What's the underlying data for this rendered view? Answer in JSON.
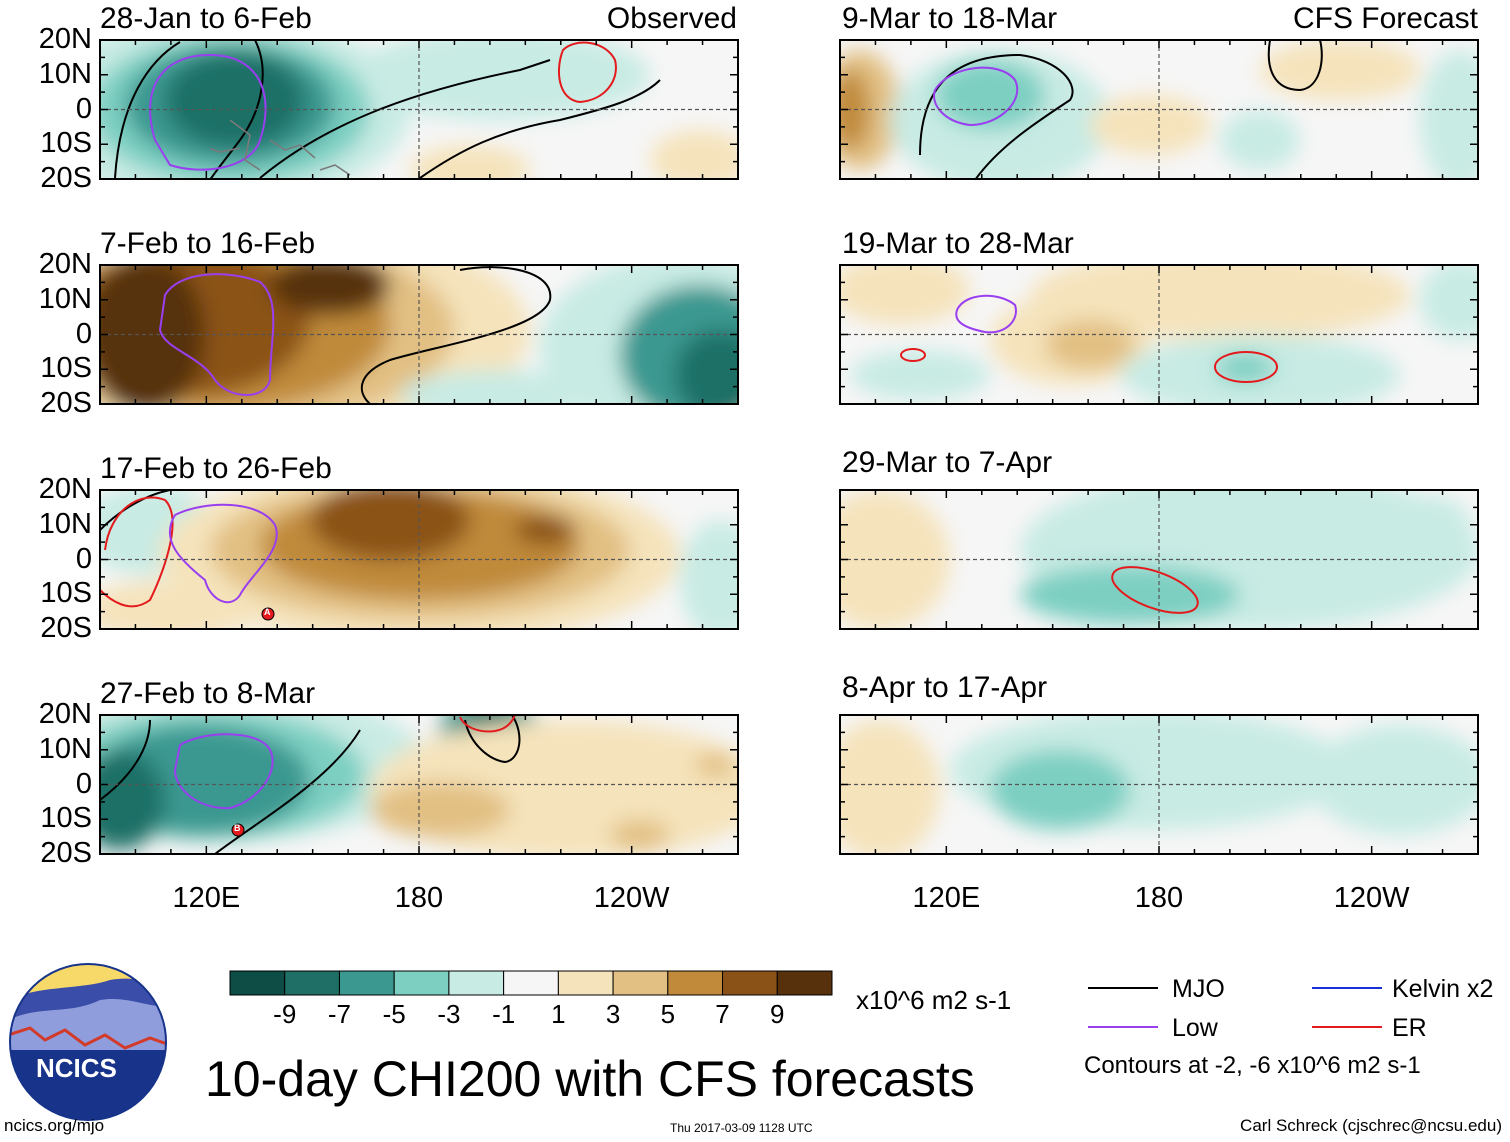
{
  "chart_data": {
    "type": "heatmap",
    "title": "10-day CHI200 with CFS forecasts",
    "variable": "CHI200",
    "units": "x10^6 m2 s-1",
    "y_ticks": [
      "20N",
      "10N",
      "0",
      "10S",
      "20S"
    ],
    "x_ticks": [
      "120E",
      "180",
      "120W"
    ],
    "ylim": [
      -20,
      20
    ],
    "colorbar": {
      "labels": [
        "-9",
        "-7",
        "-5",
        "-3",
        "-1",
        "1",
        "3",
        "5",
        "7",
        "9"
      ],
      "colors": [
        "#0d4d45",
        "#1f6f66",
        "#3a9890",
        "#7dcfc2",
        "#c8ebe4",
        "#f6f6f6",
        "#f5e3bb",
        "#e2c083",
        "#c08a3a",
        "#8b5217",
        "#56310c"
      ]
    },
    "panels": [
      {
        "label": "28-Jan to 6-Feb",
        "type_label": "Observed",
        "source": "observed"
      },
      {
        "label": "7-Feb to 16-Feb",
        "type_label": "",
        "source": "observed"
      },
      {
        "label": "17-Feb to 26-Feb",
        "type_label": "",
        "source": "observed",
        "markers": [
          "A"
        ]
      },
      {
        "label": "27-Feb to 8-Mar",
        "type_label": "",
        "source": "observed",
        "markers": [
          "B"
        ]
      },
      {
        "label": "9-Mar to 18-Mar",
        "type_label": "CFS Forecast",
        "source": "forecast"
      },
      {
        "label": "19-Mar to 28-Mar",
        "type_label": "",
        "source": "forecast"
      },
      {
        "label": "29-Mar to 7-Apr",
        "type_label": "",
        "source": "forecast"
      },
      {
        "label": "8-Apr to 17-Apr",
        "type_label": "",
        "source": "forecast"
      }
    ],
    "legend": {
      "items": [
        {
          "name": "MJO",
          "color": "#000000"
        },
        {
          "name": "Kelvin x2",
          "color": "#1a2fd6"
        },
        {
          "name": "Low",
          "color": "#9a3ff0"
        },
        {
          "name": "ER",
          "color": "#e41a1c"
        }
      ],
      "contours_note": "Contours at -2, -6 x10^6 m2 s-1"
    }
  },
  "logo": {
    "text": "NCICS"
  },
  "footer": {
    "url": "ncics.org/mjo",
    "timestamp": "Thu 2017-03-09 1128 UTC",
    "credit": "Carl Schreck (cjschrec@ncsu.edu)"
  }
}
